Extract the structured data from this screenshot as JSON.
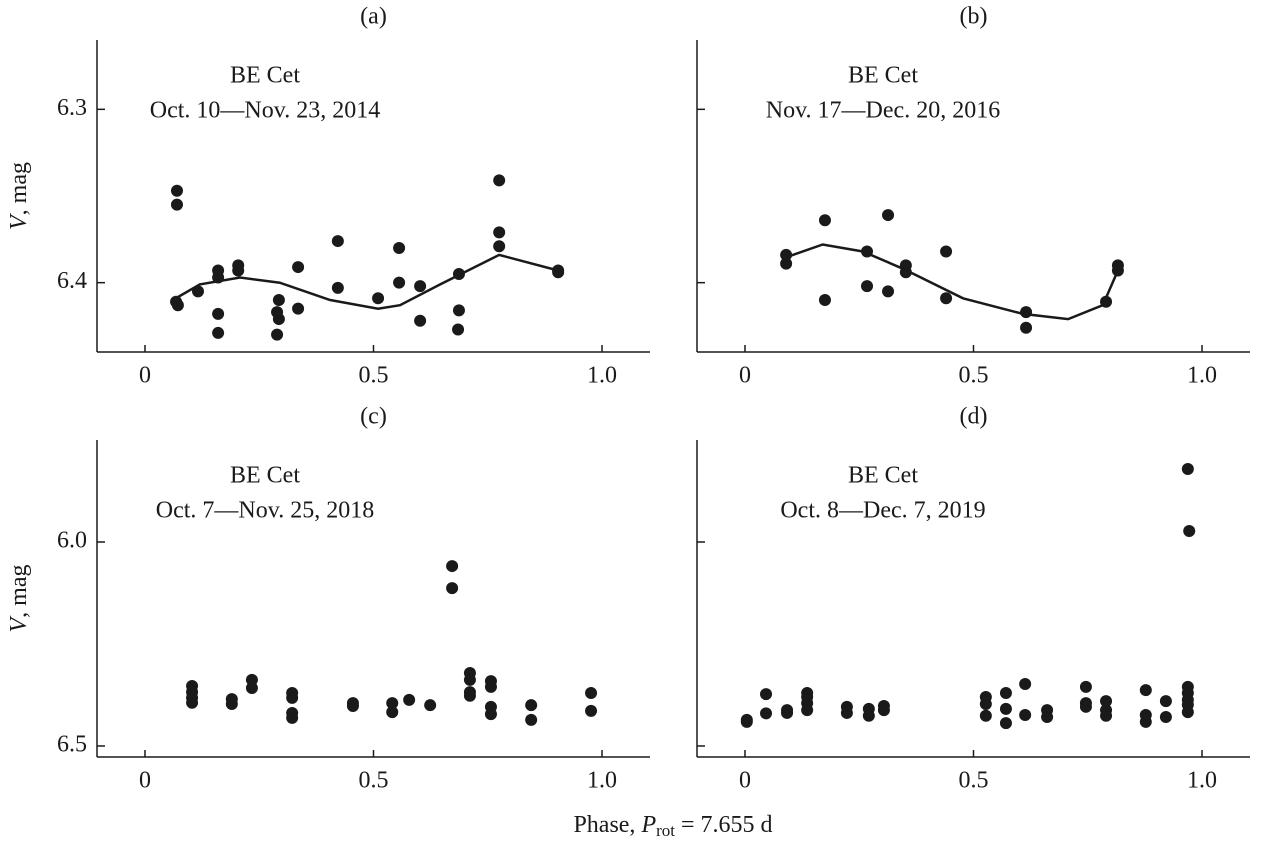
{
  "xlabel": {
    "main": "Phase, ",
    "var": "P",
    "sub": "rot",
    "rest": " = 7.655 d"
  },
  "chart_data": [
    {
      "type": "scatter",
      "title": "(a)",
      "annotation": [
        "BE Cet",
        "Oct. 10—Nov. 23, 2014"
      ],
      "ylabel": {
        "var": "V",
        "rest": ", mag"
      },
      "xlim": [
        -0.105,
        1.105
      ],
      "xticks": [
        0,
        0.5,
        {
          "value": 1,
          "label": "1.0"
        }
      ],
      "ylim": [
        6.44,
        6.26
      ],
      "yticks": [
        6.3,
        6.4
      ],
      "ytick_labels": true,
      "color": "#1a1a1a",
      "points": {
        "x": [
          0.07,
          0.07,
          0.068,
          0.072,
          0.116,
          0.16,
          0.16,
          0.16,
          0.16,
          0.204,
          0.204,
          0.293,
          0.289,
          0.293,
          0.289,
          0.335,
          0.335,
          0.422,
          0.422,
          0.51,
          0.556,
          0.556,
          0.602,
          0.602,
          0.687,
          0.687,
          0.685,
          0.775,
          0.775,
          0.775,
          0.904,
          0.904
        ],
        "values": [
          6.347,
          6.355,
          6.411,
          6.413,
          6.405,
          6.393,
          6.397,
          6.418,
          6.429,
          6.39,
          6.393,
          6.41,
          6.417,
          6.421,
          6.43,
          6.391,
          6.415,
          6.376,
          6.403,
          6.409,
          6.38,
          6.4,
          6.402,
          6.422,
          6.395,
          6.416,
          6.427,
          6.341,
          6.371,
          6.379,
          6.393,
          6.394
        ]
      },
      "fit": {
        "x": [
          0.061,
          0.12,
          0.208,
          0.295,
          0.405,
          0.51,
          0.558,
          0.646,
          0.775,
          0.904
        ],
        "values": [
          6.41,
          6.401,
          6.397,
          6.4,
          6.41,
          6.415,
          6.413,
          6.401,
          6.384,
          6.393
        ]
      }
    },
    {
      "type": "scatter",
      "title": "(b)",
      "annotation": [
        "BE Cet",
        "Nov. 17—Dec. 20, 2016"
      ],
      "xlim": [
        -0.105,
        1.105
      ],
      "xticks": [
        0,
        0.5,
        {
          "value": 1,
          "label": "1.0"
        }
      ],
      "ylim": [
        6.44,
        6.26
      ],
      "yticks": [
        6.3,
        6.4
      ],
      "ytick_labels": false,
      "color": "#1a1a1a",
      "points": {
        "x": [
          0.09,
          0.09,
          0.175,
          0.175,
          0.267,
          0.267,
          0.313,
          0.313,
          0.352,
          0.352,
          0.44,
          0.44,
          0.615,
          0.615,
          0.79,
          0.816,
          0.816
        ],
        "values": [
          6.384,
          6.389,
          6.364,
          6.41,
          6.382,
          6.402,
          6.361,
          6.405,
          6.39,
          6.394,
          6.382,
          6.409,
          6.417,
          6.426,
          6.411,
          6.39,
          6.393
        ]
      },
      "fit": {
        "x": [
          0.083,
          0.17,
          0.258,
          0.346,
          0.477,
          0.608,
          0.707,
          0.783,
          0.816
        ],
        "values": [
          6.386,
          6.378,
          6.382,
          6.392,
          6.409,
          6.418,
          6.421,
          6.413,
          6.393
        ]
      }
    },
    {
      "type": "scatter",
      "title": "(c)",
      "annotation": [
        "BE Cet",
        "Oct. 7—Nov. 25, 2018"
      ],
      "ylabel": {
        "var": "V",
        "rest": ", mag"
      },
      "xlim": [
        -0.105,
        1.105
      ],
      "xticks": [
        0,
        0.5,
        {
          "value": 1,
          "label": "1.0"
        }
      ],
      "ylim": [
        6.527,
        5.75
      ],
      "yticks": [
        {
          "value": 6,
          "label": "6.0"
        },
        6.5
      ],
      "ytick_labels": true,
      "color": "#1a1a1a",
      "points": {
        "x": [
          0.103,
          0.103,
          0.103,
          0.103,
          0.19,
          0.19,
          0.234,
          0.234,
          0.322,
          0.322,
          0.322,
          0.322,
          0.455,
          0.455,
          0.541,
          0.541,
          0.578,
          0.624,
          0.672,
          0.672,
          0.711,
          0.711,
          0.711,
          0.711,
          0.757,
          0.757,
          0.757,
          0.757,
          0.845,
          0.845,
          0.976,
          0.976
        ],
        "values": [
          6.353,
          6.368,
          6.382,
          6.394,
          6.385,
          6.397,
          6.338,
          6.358,
          6.37,
          6.382,
          6.419,
          6.431,
          6.395,
          6.402,
          6.395,
          6.417,
          6.387,
          6.4,
          6.059,
          6.113,
          6.321,
          6.338,
          6.368,
          6.377,
          6.341,
          6.355,
          6.404,
          6.422,
          6.4,
          6.436,
          6.37,
          6.414
        ]
      }
    },
    {
      "type": "scatter",
      "title": "(d)",
      "annotation": [
        "BE Cet",
        "Oct. 8—Dec. 7, 2019"
      ],
      "xlim": [
        -0.105,
        1.105
      ],
      "xticks": [
        0,
        0.5,
        {
          "value": 1,
          "label": "1.0"
        }
      ],
      "ylim": [
        6.527,
        5.75
      ],
      "yticks": [
        6,
        6.5
      ],
      "ytick_labels": false,
      "color": "#1a1a1a",
      "points": {
        "x": [
          0.004,
          0.004,
          0.046,
          0.046,
          0.092,
          0.092,
          0.136,
          0.136,
          0.136,
          0.136,
          0.223,
          0.223,
          0.271,
          0.271,
          0.304,
          0.304,
          0.527,
          0.527,
          0.527,
          0.571,
          0.571,
          0.571,
          0.613,
          0.613,
          0.661,
          0.661,
          0.746,
          0.746,
          0.746,
          0.79,
          0.79,
          0.79,
          0.877,
          0.877,
          0.877,
          0.921,
          0.921,
          0.969,
          0.972,
          0.969,
          0.969,
          0.969,
          0.969,
          0.969
        ],
        "values": [
          6.436,
          6.441,
          6.373,
          6.42,
          6.412,
          6.419,
          6.37,
          6.38,
          6.395,
          6.412,
          6.404,
          6.419,
          6.409,
          6.426,
          6.402,
          6.412,
          6.38,
          6.397,
          6.426,
          6.37,
          6.409,
          6.444,
          6.348,
          6.424,
          6.412,
          6.429,
          6.355,
          6.395,
          6.404,
          6.39,
          6.412,
          6.426,
          6.363,
          6.424,
          6.441,
          6.39,
          6.429,
          5.821,
          5.973,
          6.355,
          6.37,
          6.387,
          6.399,
          6.417
        ]
      }
    }
  ]
}
